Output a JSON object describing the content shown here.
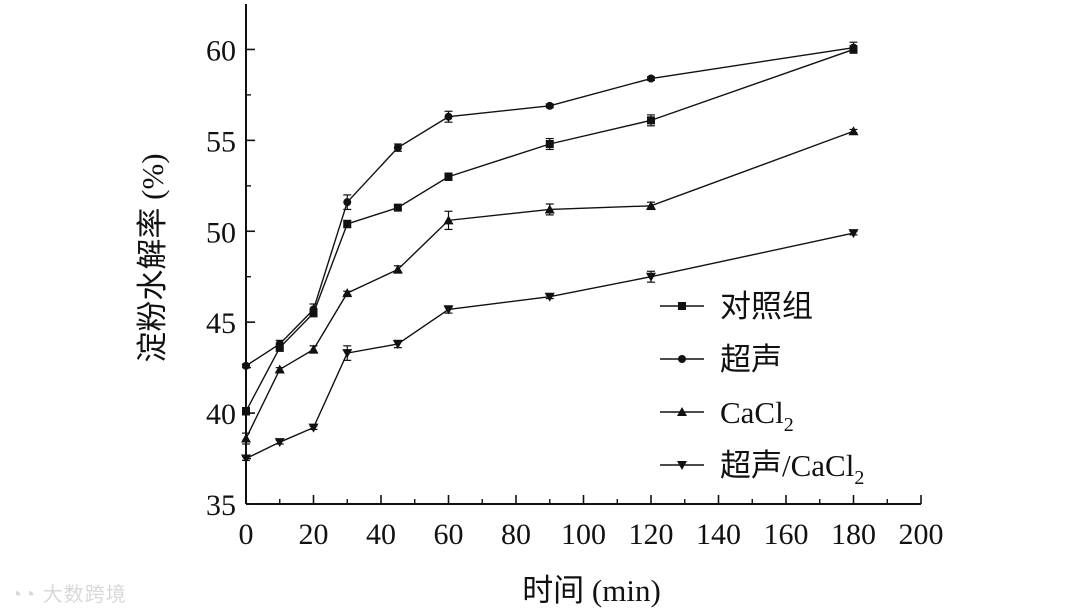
{
  "watermark": "大数跨境",
  "chart_data": {
    "type": "line",
    "xlabel": "时间 (min)",
    "ylabel": "淀粉水解率 (%)",
    "xlim": [
      0,
      200
    ],
    "ylim": [
      35,
      62.5
    ],
    "xticks": [
      0,
      20,
      40,
      60,
      80,
      100,
      120,
      140,
      160,
      180,
      200
    ],
    "yticks": [
      35,
      40,
      45,
      50,
      55,
      60
    ],
    "x": [
      0,
      10,
      20,
      30,
      45,
      60,
      90,
      120,
      180
    ],
    "legend_position": "lower-right",
    "grid": false,
    "series": [
      {
        "name": "对照组",
        "name_sub": "",
        "marker": "square",
        "values": [
          40.1,
          43.6,
          45.5,
          50.4,
          51.3,
          53.0,
          54.8,
          56.1,
          60.0
        ],
        "errors": [
          0.2,
          0.2,
          0.2,
          0.2,
          0.1,
          0.2,
          0.3,
          0.3,
          0.2
        ]
      },
      {
        "name": "超声",
        "name_sub": "",
        "marker": "circle",
        "values": [
          42.6,
          43.8,
          45.7,
          51.6,
          54.6,
          56.3,
          56.9,
          58.4,
          60.1
        ],
        "errors": [
          0.1,
          0.2,
          0.3,
          0.4,
          0.2,
          0.3,
          0.1,
          0.1,
          0.3
        ]
      },
      {
        "name": "CaCl",
        "name_sub": "2",
        "marker": "triangle-up",
        "values": [
          38.6,
          42.4,
          43.5,
          46.6,
          47.9,
          50.6,
          51.2,
          51.4,
          55.5
        ],
        "errors": [
          0.3,
          0.1,
          0.2,
          0.1,
          0.2,
          0.5,
          0.3,
          0.2,
          0.1
        ]
      },
      {
        "name": "超声/CaCl",
        "name_sub": "2",
        "marker": "triangle-down",
        "values": [
          37.5,
          38.4,
          39.2,
          43.3,
          43.8,
          45.7,
          46.4,
          47.5,
          49.9
        ],
        "errors": [
          0.1,
          0.1,
          0.1,
          0.4,
          0.2,
          0.2,
          0.1,
          0.3,
          0.1
        ]
      }
    ]
  }
}
